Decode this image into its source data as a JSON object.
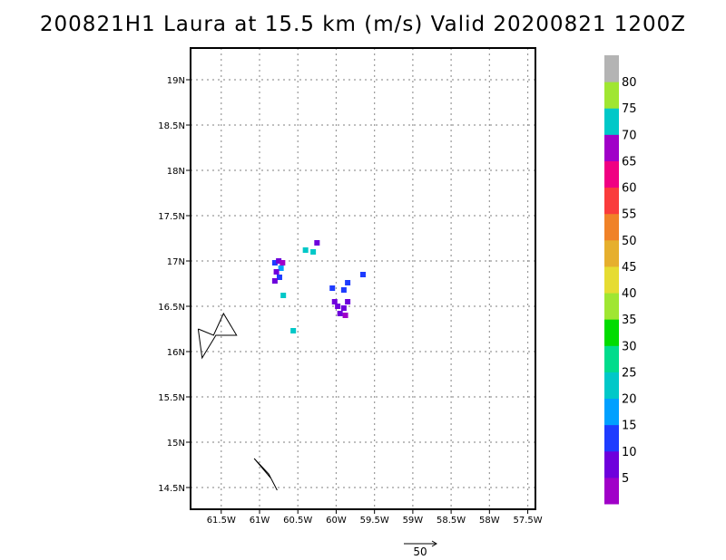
{
  "chart_data": {
    "type": "heatmap",
    "title": "200821H1 Laura at 15.5 km (m/s) Valid 20200821 1200Z",
    "x_ticks": [
      {
        "lon": -61.5,
        "label": "61.5W"
      },
      {
        "lon": -61.0,
        "label": "61W"
      },
      {
        "lon": -60.5,
        "label": "60.5W"
      },
      {
        "lon": -60.0,
        "label": "60W"
      },
      {
        "lon": -59.5,
        "label": "59.5W"
      },
      {
        "lon": -59.0,
        "label": "59W"
      },
      {
        "lon": -58.5,
        "label": "58.5W"
      },
      {
        "lon": -58.0,
        "label": "58W"
      },
      {
        "lon": -57.5,
        "label": "57.5W"
      }
    ],
    "y_ticks": [
      {
        "lat": 19.0,
        "label": "19N"
      },
      {
        "lat": 18.5,
        "label": "18.5N"
      },
      {
        "lat": 18.0,
        "label": "18N"
      },
      {
        "lat": 17.5,
        "label": "17.5N"
      },
      {
        "lat": 17.0,
        "label": "17N"
      },
      {
        "lat": 16.5,
        "label": "16.5N"
      },
      {
        "lat": 16.0,
        "label": "16N"
      },
      {
        "lat": 15.5,
        "label": "15.5N"
      },
      {
        "lat": 15.0,
        "label": "15N"
      },
      {
        "lat": 14.5,
        "label": "14.5N"
      }
    ],
    "xlim": [
      -61.9,
      -57.4
    ],
    "ylim": [
      14.26,
      19.35
    ],
    "grid": true,
    "colorbar": {
      "labels": [
        "5",
        "10",
        "15",
        "20",
        "25",
        "30",
        "35",
        "40",
        "45",
        "50",
        "55",
        "60",
        "65",
        "70",
        "75",
        "80"
      ],
      "colors": [
        "#a000c8",
        "#6e00dc",
        "#1e3cff",
        "#00a0ff",
        "#00c8c8",
        "#00dc8c",
        "#00dc00",
        "#a0e632",
        "#e6dc32",
        "#e6af2d",
        "#f08228",
        "#fa3c3c",
        "#f00082",
        "#a000c8",
        "#00c8c8",
        "#a0e632",
        "#b4b4b4"
      ]
    },
    "wind_cells": [
      {
        "lon": -60.8,
        "lat": 16.98,
        "value": 12
      },
      {
        "lon": -60.75,
        "lat": 17.0,
        "value": 8
      },
      {
        "lon": -60.72,
        "lat": 16.92,
        "value": 18
      },
      {
        "lon": -60.78,
        "lat": 16.88,
        "value": 6
      },
      {
        "lon": -60.74,
        "lat": 16.82,
        "value": 10
      },
      {
        "lon": -60.7,
        "lat": 16.98,
        "value": 4
      },
      {
        "lon": -60.8,
        "lat": 16.78,
        "value": 5
      },
      {
        "lon": -60.69,
        "lat": 16.62,
        "value": 20
      },
      {
        "lon": -60.56,
        "lat": 16.23,
        "value": 20
      },
      {
        "lon": -60.4,
        "lat": 17.12,
        "value": 22
      },
      {
        "lon": -60.3,
        "lat": 17.1,
        "value": 20
      },
      {
        "lon": -60.25,
        "lat": 17.2,
        "value": 5
      },
      {
        "lon": -60.05,
        "lat": 16.7,
        "value": 10
      },
      {
        "lon": -60.02,
        "lat": 16.55,
        "value": 5
      },
      {
        "lon": -59.98,
        "lat": 16.5,
        "value": 6
      },
      {
        "lon": -59.9,
        "lat": 16.48,
        "value": 5
      },
      {
        "lon": -59.88,
        "lat": 16.4,
        "value": 4
      },
      {
        "lon": -59.85,
        "lat": 16.55,
        "value": 8
      },
      {
        "lon": -59.95,
        "lat": 16.42,
        "value": 5
      },
      {
        "lon": -59.9,
        "lat": 16.68,
        "value": 12
      },
      {
        "lon": -59.85,
        "lat": 16.76,
        "value": 10
      },
      {
        "lon": -59.65,
        "lat": 16.85,
        "value": 12
      }
    ],
    "track_segments": [
      {
        "points": [
          [
            -61.8,
            16.25
          ],
          [
            -61.6,
            16.18
          ],
          [
            -61.47,
            16.42
          ],
          [
            -61.3,
            16.18
          ],
          [
            -61.57,
            16.18
          ],
          [
            -61.75,
            15.93
          ],
          [
            -61.8,
            16.25
          ]
        ]
      },
      {
        "points": [
          [
            -61.07,
            14.82
          ],
          [
            -60.85,
            14.6
          ],
          [
            -60.77,
            14.47
          ],
          [
            -60.88,
            14.65
          ],
          [
            -61.07,
            14.82
          ]
        ]
      }
    ],
    "vector_key": {
      "label": "50"
    }
  }
}
